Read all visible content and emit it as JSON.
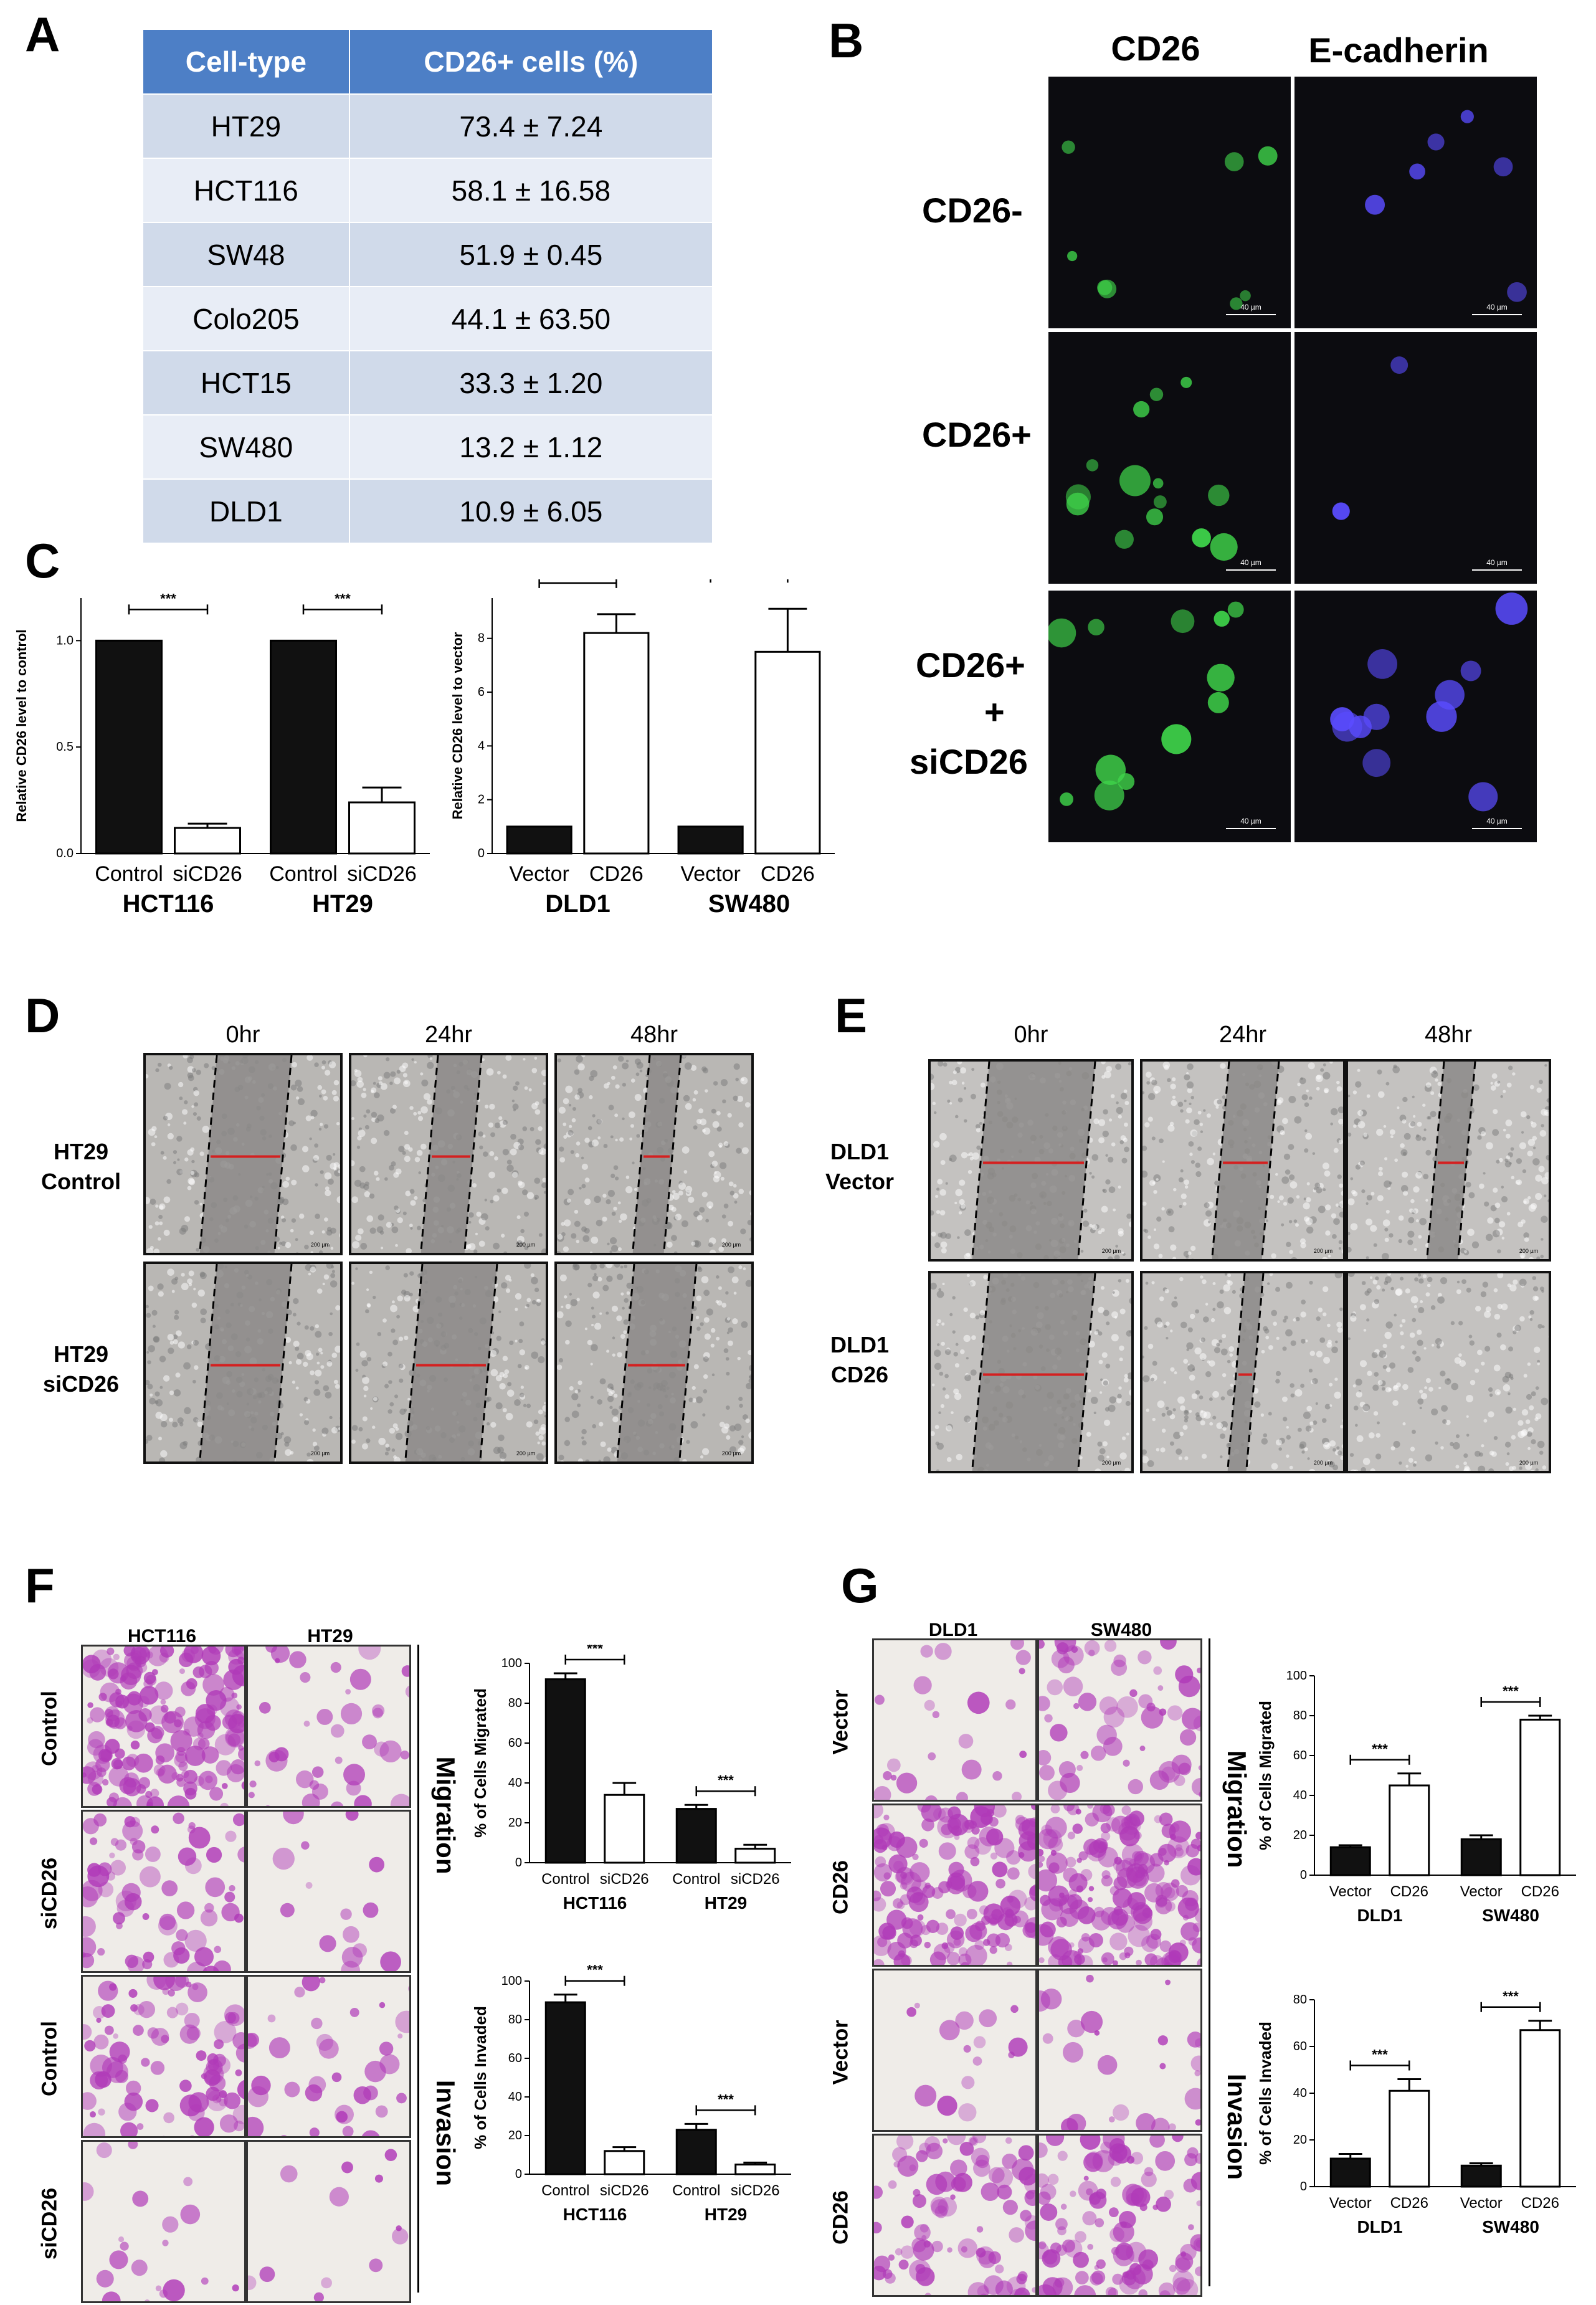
{
  "panels": {
    "A": "A",
    "B": "B",
    "C": "C",
    "D": "D",
    "E": "E",
    "F": "F",
    "G": "G"
  },
  "table_a": {
    "headers": [
      "Cell-type",
      "CD26+ cells (%)"
    ],
    "rows": [
      [
        "HT29",
        "73.4 ± 7.24"
      ],
      [
        "HCT116",
        "58.1 ± 16.58"
      ],
      [
        "SW48",
        "51.9 ± 0.45"
      ],
      [
        "Colo205",
        "44.1 ± 63.50"
      ],
      [
        "HCT15",
        "33.3 ± 1.20"
      ],
      [
        "SW480",
        "13.2 ± 1.12"
      ],
      [
        "DLD1",
        "10.9 ± 6.05"
      ]
    ]
  },
  "panel_b": {
    "col_headers": [
      "CD26",
      "E-cadherin"
    ],
    "row_labels": [
      "CD26-",
      "CD26+",
      "CD26+",
      "+",
      "siCD26"
    ],
    "scale": "40 µm"
  },
  "panel_d": {
    "time_headers": [
      "0hr",
      "24hr",
      "48hr"
    ],
    "row1": [
      "HT29",
      "Control"
    ],
    "row2": [
      "HT29",
      "siCD26"
    ],
    "scale": "200 µm"
  },
  "panel_e": {
    "time_headers": [
      "0hr",
      "24hr",
      "48hr"
    ],
    "row1": [
      "DLD1",
      "Vector"
    ],
    "row2": [
      "DLD1",
      "CD26"
    ],
    "scale": "200 µm"
  },
  "panel_f": {
    "col_headers": [
      "HCT116",
      "HT29"
    ],
    "row_labels": [
      "Control",
      "siCD26",
      "Control",
      "siCD26"
    ],
    "side_labels": [
      "Migration",
      "Invasion"
    ]
  },
  "panel_g": {
    "col_headers": [
      "DLD1",
      "SW480"
    ],
    "row_labels": [
      "Vector",
      "CD26",
      "Vector",
      "CD26"
    ],
    "side_labels": [
      "Migration",
      "Invasion"
    ]
  },
  "colors": {
    "table_header": "#4d7fc6",
    "green_stain": "#3fd44a",
    "blue_stain": "#5a4cff",
    "scratch_red": "#d42020",
    "crystal_violet": "#b03ab8"
  },
  "chart_data": [
    {
      "id": "C1",
      "type": "bar",
      "ylabel": "Relative CD26 level to control",
      "ylim": [
        0,
        1.2
      ],
      "yticks": [
        "0.0",
        "0.5",
        "1.0"
      ],
      "categories": [
        "Control",
        "siCD26",
        "Control",
        "siCD26"
      ],
      "groups": [
        "HCT116",
        "HT29"
      ],
      "values": [
        1.0,
        0.12,
        1.0,
        0.24
      ],
      "errors": [
        0,
        0.02,
        0,
        0.07
      ],
      "fill": [
        "black",
        "white",
        "black",
        "white"
      ],
      "significance": [
        "***",
        "***"
      ]
    },
    {
      "id": "C2",
      "type": "bar",
      "ylabel": "Relative CD26 level to vector",
      "ylim": [
        0,
        9.5
      ],
      "yticks": [
        "0",
        "2",
        "4",
        "6",
        "8"
      ],
      "categories": [
        "Vector",
        "CD26",
        "Vector",
        "CD26"
      ],
      "groups": [
        "DLD1",
        "SW480"
      ],
      "values": [
        1.0,
        8.2,
        1.0,
        7.5
      ],
      "errors": [
        0,
        0.7,
        0,
        1.6
      ],
      "fill": [
        "black",
        "white",
        "black",
        "white"
      ],
      "significance": [
        "***",
        "***"
      ]
    },
    {
      "id": "F-mig",
      "type": "bar",
      "ylabel": "% of Cells Migrated",
      "ylim": [
        0,
        100
      ],
      "yticks": [
        "0",
        "20",
        "40",
        "60",
        "80",
        "100"
      ],
      "categories": [
        "Control",
        "siCD26",
        "Control",
        "siCD26"
      ],
      "groups": [
        "HCT116",
        "HT29"
      ],
      "values": [
        92,
        34,
        27,
        7
      ],
      "errors": [
        3,
        6,
        2,
        2
      ],
      "fill": [
        "black",
        "white",
        "black",
        "white"
      ],
      "significance": [
        "***",
        "***"
      ]
    },
    {
      "id": "F-inv",
      "type": "bar",
      "ylabel": "% of Cells Invaded",
      "ylim": [
        0,
        100
      ],
      "yticks": [
        "0",
        "20",
        "40",
        "60",
        "80",
        "100"
      ],
      "categories": [
        "Control",
        "siCD26",
        "Control",
        "siCD26"
      ],
      "groups": [
        "HCT116",
        "HT29"
      ],
      "values": [
        89,
        12,
        23,
        5
      ],
      "errors": [
        4,
        2,
        3,
        1
      ],
      "fill": [
        "black",
        "white",
        "black",
        "white"
      ],
      "significance": [
        "***",
        "***"
      ]
    },
    {
      "id": "G-mig",
      "type": "bar",
      "ylabel": "% of Cells Migrated",
      "ylim": [
        0,
        100
      ],
      "yticks": [
        "0",
        "20",
        "40",
        "60",
        "80",
        "100"
      ],
      "categories": [
        "Vector",
        "CD26",
        "Vector",
        "CD26"
      ],
      "groups": [
        "DLD1",
        "SW480"
      ],
      "values": [
        14,
        45,
        18,
        78
      ],
      "errors": [
        1,
        6,
        2,
        2
      ],
      "fill": [
        "black",
        "white",
        "black",
        "white"
      ],
      "significance": [
        "***",
        "***"
      ]
    },
    {
      "id": "G-inv",
      "type": "bar",
      "ylabel": "% of Cells Invaded",
      "ylim": [
        0,
        80
      ],
      "yticks": [
        "0",
        "20",
        "40",
        "60",
        "80"
      ],
      "categories": [
        "Vector",
        "CD26",
        "Vector",
        "CD26"
      ],
      "groups": [
        "DLD1",
        "SW480"
      ],
      "values": [
        12,
        41,
        9,
        67
      ],
      "errors": [
        2,
        5,
        1,
        4
      ],
      "fill": [
        "black",
        "white",
        "black",
        "white"
      ],
      "significance": [
        "***",
        "***"
      ]
    }
  ]
}
